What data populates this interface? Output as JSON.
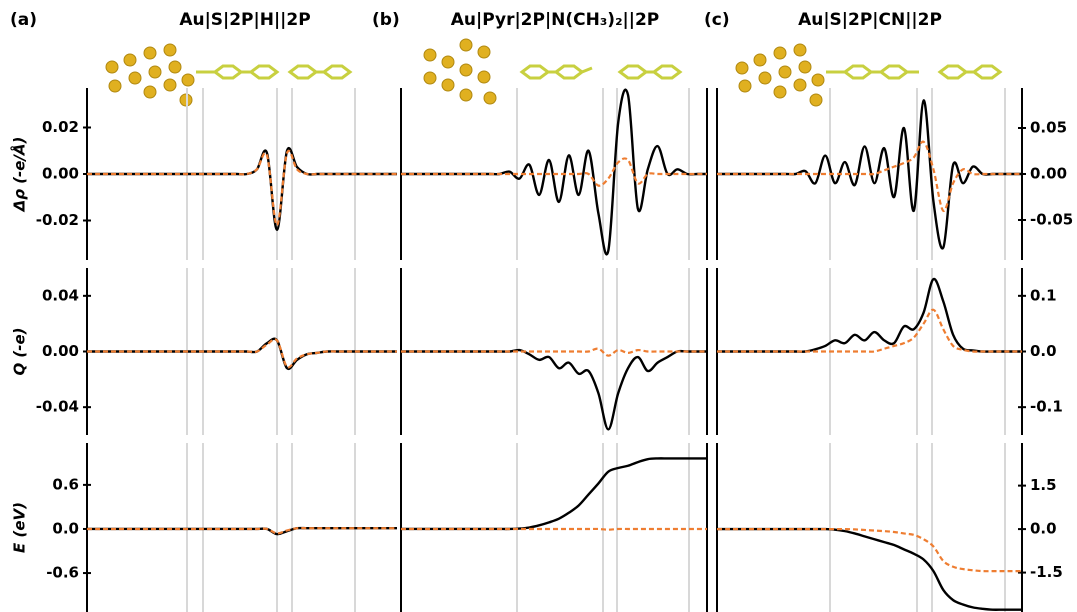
{
  "panels": [
    {
      "label": "(a)",
      "title": "Au|S|2P|H||2P"
    },
    {
      "label": "(b)",
      "title": "Au|Pyr|2P|N(CH₃)₂||2P"
    },
    {
      "label": "(c)",
      "title": "Au|S|2P|CN||2P"
    }
  ],
  "chart_data": [
    {
      "type": "line",
      "ylabel": "Δρ (-e/Å)",
      "ylim": [
        -0.037,
        0.037
      ],
      "yticks": [
        0.02,
        {
          "value": 0,
          "label": "0.00"
        },
        -0.02
      ],
      "categories": [
        null,
        null,
        null,
        null,
        null,
        null,
        null,
        null,
        null,
        null,
        null,
        null,
        null,
        null,
        null,
        null,
        null,
        null,
        null,
        null,
        null,
        null,
        null,
        null,
        null,
        null,
        null,
        null,
        null,
        null,
        null,
        null
      ],
      "series": [
        {
          "color": "#000000",
          "dash": false,
          "values": [
            0,
            0,
            0,
            0,
            0,
            0,
            0,
            0,
            0,
            0,
            0,
            0,
            0,
            0,
            0,
            0,
            0,
            0.002,
            0.009,
            -0.024,
            0.01,
            0.003,
            0,
            0,
            0,
            0,
            0,
            0,
            0,
            0,
            0,
            0
          ]
        },
        {
          "color": "#ee7d31",
          "dash": true,
          "values": [
            0,
            0,
            0,
            0,
            0,
            0,
            0,
            0,
            0,
            0,
            0,
            0,
            0,
            0,
            0,
            0,
            0,
            0.002,
            0.008,
            -0.022,
            0.009,
            0.002,
            0,
            0,
            0,
            0,
            0,
            0,
            0,
            0,
            0,
            0
          ]
        }
      ]
    },
    {
      "type": "line",
      "ylabel": "Q (-e)",
      "ylim": [
        -0.06,
        0.06
      ],
      "yticks": [
        0.04,
        {
          "value": 0,
          "label": "0.00"
        },
        -0.04
      ],
      "categories": [
        null,
        null,
        null,
        null,
        null,
        null,
        null,
        null,
        null,
        null,
        null,
        null,
        null,
        null,
        null,
        null,
        null,
        null,
        null,
        null,
        null,
        null,
        null,
        null,
        null,
        null,
        null,
        null,
        null,
        null,
        null,
        null
      ],
      "series": [
        {
          "color": "#000000",
          "dash": false,
          "values": [
            0,
            0,
            0,
            0,
            0,
            0,
            0,
            0,
            0,
            0,
            0,
            0,
            0,
            0,
            0,
            0,
            0,
            0,
            0.006,
            0.008,
            -0.012,
            -0.006,
            -0.002,
            -0.001,
            0,
            0,
            0,
            0,
            0,
            0,
            0,
            0
          ]
        },
        {
          "color": "#ee7d31",
          "dash": true,
          "values": [
            0,
            0,
            0,
            0,
            0,
            0,
            0,
            0,
            0,
            0,
            0,
            0,
            0,
            0,
            0,
            0,
            0,
            0,
            0.005,
            0.008,
            -0.011,
            -0.005,
            -0.002,
            -0.001,
            0,
            0,
            0,
            0,
            0,
            0,
            0,
            0
          ]
        }
      ]
    },
    {
      "type": "line",
      "ylabel": "E (eV)",
      "ylim": [
        -1.13,
        1.17
      ],
      "yticks": [
        0.6,
        {
          "value": 0,
          "label": "0.0"
        },
        -0.6
      ],
      "categories": [
        null,
        null,
        null,
        null,
        null,
        null,
        null,
        null,
        null,
        null,
        null,
        null,
        null,
        null,
        null,
        null,
        null,
        null,
        null,
        null,
        null,
        null,
        null,
        null,
        null,
        null,
        null,
        null,
        null,
        null,
        null,
        null
      ],
      "series": [
        {
          "color": "#000000",
          "dash": false,
          "values": [
            0,
            0,
            0,
            0,
            0,
            0,
            0,
            0,
            0,
            0,
            0,
            0,
            0,
            0,
            0,
            0,
            0,
            0,
            0,
            -0.07,
            -0.03,
            0.01,
            0.01,
            0.01,
            0.01,
            0.01,
            0.01,
            0.01,
            0.01,
            0.01,
            0.01,
            0.01
          ]
        },
        {
          "color": "#ee7d31",
          "dash": true,
          "values": [
            0,
            0,
            0,
            0,
            0,
            0,
            0,
            0,
            0,
            0,
            0,
            0,
            0,
            0,
            0,
            0,
            0,
            0,
            0,
            -0.06,
            -0.02,
            0.01,
            0.01,
            0.01,
            0.01,
            0.01,
            0.01,
            0.01,
            0.01,
            0.01,
            0.01,
            0.01
          ]
        }
      ]
    },
    {
      "type": "line",
      "ylim": [
        -0.037,
        0.037
      ],
      "categories": [
        null,
        null,
        null,
        null,
        null,
        null,
        null,
        null,
        null,
        null,
        null,
        null,
        null,
        null,
        null,
        null,
        null,
        null,
        null,
        null,
        null,
        null,
        null,
        null,
        null,
        null,
        null,
        null,
        null,
        null,
        null,
        null
      ],
      "series": [
        {
          "color": "#000000",
          "dash": false,
          "values": [
            0,
            0,
            0,
            0,
            0,
            0,
            0,
            0,
            0,
            0,
            0,
            0.001,
            -0.002,
            0.004,
            -0.009,
            0.006,
            -0.012,
            0.008,
            -0.009,
            0.01,
            -0.017,
            -0.033,
            0.022,
            0.034,
            -0.015,
            0.002,
            0.012,
            0,
            0.002,
            0,
            0,
            0
          ]
        },
        {
          "color": "#ee7d31",
          "dash": true,
          "values": [
            0,
            0,
            0,
            0,
            0,
            0,
            0,
            0,
            0,
            0,
            0,
            0,
            0,
            0,
            0,
            0,
            0,
            0,
            0,
            0,
            -0.005,
            -0.002,
            0.005,
            0.006,
            -0.004,
            0,
            0,
            0,
            0,
            0,
            0,
            0
          ]
        }
      ]
    },
    {
      "type": "line",
      "ylim": [
        -0.06,
        0.06
      ],
      "categories": [
        null,
        null,
        null,
        null,
        null,
        null,
        null,
        null,
        null,
        null,
        null,
        null,
        null,
        null,
        null,
        null,
        null,
        null,
        null,
        null,
        null,
        null,
        null,
        null,
        null,
        null,
        null,
        null,
        null,
        null,
        null,
        null
      ],
      "series": [
        {
          "color": "#000000",
          "dash": false,
          "values": [
            0,
            0,
            0,
            0,
            0,
            0,
            0,
            0,
            0,
            0,
            0,
            0,
            0.001,
            -0.002,
            -0.006,
            -0.004,
            -0.012,
            -0.008,
            -0.016,
            -0.014,
            -0.03,
            -0.056,
            -0.03,
            -0.012,
            -0.004,
            -0.014,
            -0.008,
            -0.004,
            0,
            0,
            0,
            0
          ]
        },
        {
          "color": "#ee7d31",
          "dash": true,
          "values": [
            0,
            0,
            0,
            0,
            0,
            0,
            0,
            0,
            0,
            0,
            0,
            0,
            0,
            0,
            0,
            0,
            0,
            0,
            0,
            0,
            0.002,
            -0.003,
            0.001,
            -0.001,
            0.001,
            0,
            0,
            0,
            0,
            0,
            0,
            0
          ]
        }
      ]
    },
    {
      "type": "line",
      "ylim": [
        -1.13,
        1.17
      ],
      "categories": [
        null,
        null,
        null,
        null,
        null,
        null,
        null,
        null,
        null,
        null,
        null,
        null,
        null,
        null,
        null,
        null,
        null,
        null,
        null,
        null,
        null,
        null,
        null,
        null,
        null,
        null,
        null,
        null,
        null,
        null,
        null,
        null
      ],
      "series": [
        {
          "color": "#000000",
          "dash": false,
          "values": [
            0,
            0,
            0,
            0,
            0,
            0,
            0,
            0,
            0,
            0,
            0,
            0,
            0.005,
            0.02,
            0.05,
            0.09,
            0.14,
            0.22,
            0.32,
            0.47,
            0.62,
            0.78,
            0.83,
            0.86,
            0.91,
            0.95,
            0.96,
            0.96,
            0.96,
            0.96,
            0.96,
            0.96
          ]
        },
        {
          "color": "#ee7d31",
          "dash": true,
          "values": [
            0,
            0,
            0,
            0,
            0,
            0,
            0,
            0,
            0,
            0,
            0,
            0,
            0,
            0,
            0,
            0,
            0,
            0,
            0,
            0,
            0,
            -0.01,
            0,
            0,
            0,
            0,
            0,
            0,
            0,
            0,
            0,
            0
          ]
        }
      ]
    },
    {
      "type": "line",
      "ylim": [
        -0.0935,
        0.0935
      ],
      "yticks": [
        0.05,
        {
          "value": 0,
          "label": "0.00"
        },
        -0.05
      ],
      "categories": [
        null,
        null,
        null,
        null,
        null,
        null,
        null,
        null,
        null,
        null,
        null,
        null,
        null,
        null,
        null,
        null,
        null,
        null,
        null,
        null,
        null,
        null,
        null,
        null,
        null,
        null,
        null,
        null,
        null,
        null,
        null,
        null
      ],
      "series": [
        {
          "color": "#000000",
          "dash": false,
          "values": [
            0,
            0,
            0,
            0,
            0,
            0,
            0,
            0,
            0,
            0.003,
            -0.01,
            0.02,
            -0.01,
            0.013,
            -0.012,
            0.03,
            -0.01,
            0.028,
            -0.025,
            0.05,
            -0.04,
            0.08,
            -0.03,
            -0.08,
            0.01,
            -0.01,
            0.008,
            0,
            0,
            0,
            0,
            0
          ]
        },
        {
          "color": "#ee7d31",
          "dash": true,
          "values": [
            0,
            0,
            0,
            0,
            0,
            0,
            0,
            0,
            0,
            0,
            0,
            0,
            0,
            0,
            0,
            0,
            0,
            0.004,
            0.008,
            0.012,
            0.018,
            0.035,
            0.005,
            -0.04,
            -0.01,
            0.005,
            0,
            0,
            0,
            0,
            0,
            0
          ]
        }
      ]
    },
    {
      "type": "line",
      "ylim": [
        -0.15,
        0.15
      ],
      "yticks": [
        0.1,
        {
          "value": 0,
          "label": "0.0"
        },
        -0.1
      ],
      "categories": [
        null,
        null,
        null,
        null,
        null,
        null,
        null,
        null,
        null,
        null,
        null,
        null,
        null,
        null,
        null,
        null,
        null,
        null,
        null,
        null,
        null,
        null,
        null,
        null,
        null,
        null,
        null,
        null,
        null,
        null,
        null,
        null
      ],
      "series": [
        {
          "color": "#000000",
          "dash": false,
          "values": [
            0,
            0,
            0,
            0,
            0,
            0,
            0,
            0,
            0,
            0,
            0.004,
            0.01,
            0.02,
            0.015,
            0.03,
            0.02,
            0.035,
            0.02,
            0.015,
            0.045,
            0.04,
            0.07,
            0.13,
            0.09,
            0.03,
            0.005,
            0.002,
            0,
            0,
            0,
            0,
            0
          ]
        },
        {
          "color": "#ee7d31",
          "dash": true,
          "values": [
            0,
            0,
            0,
            0,
            0,
            0,
            0,
            0,
            0,
            0,
            0,
            0,
            0,
            0,
            0,
            0,
            0,
            0.005,
            0.01,
            0.015,
            0.025,
            0.05,
            0.075,
            0.04,
            0.01,
            0.003,
            0,
            0,
            0,
            0,
            0,
            0
          ]
        }
      ]
    },
    {
      "type": "line",
      "ylim": [
        -2.86,
        2.97
      ],
      "yticks": [
        1.5,
        {
          "value": 0,
          "label": "0.0"
        },
        -1.5
      ],
      "categories": [
        null,
        null,
        null,
        null,
        null,
        null,
        null,
        null,
        null,
        null,
        null,
        null,
        null,
        null,
        null,
        null,
        null,
        null,
        null,
        null,
        null,
        null,
        null,
        null,
        null,
        null,
        null,
        null,
        null,
        null,
        null,
        null
      ],
      "series": [
        {
          "color": "#000000",
          "dash": false,
          "values": [
            0,
            0,
            0,
            0,
            0,
            0,
            0,
            0,
            0,
            0,
            0,
            0,
            -0.02,
            -0.07,
            -0.15,
            -0.25,
            -0.35,
            -0.45,
            -0.55,
            -0.7,
            -0.85,
            -1.05,
            -1.45,
            -2.1,
            -2.45,
            -2.6,
            -2.7,
            -2.75,
            -2.78,
            -2.78,
            -2.78,
            -2.78
          ]
        },
        {
          "color": "#ee7d31",
          "dash": true,
          "values": [
            0,
            0,
            0,
            0,
            0,
            0,
            0,
            0,
            0,
            0,
            0,
            0,
            0,
            0,
            -0.01,
            -0.03,
            -0.05,
            -0.07,
            -0.1,
            -0.15,
            -0.2,
            -0.35,
            -0.6,
            -1.1,
            -1.3,
            -1.38,
            -1.42,
            -1.45,
            -1.45,
            -1.45,
            -1.45,
            -1.45
          ]
        }
      ]
    }
  ]
}
